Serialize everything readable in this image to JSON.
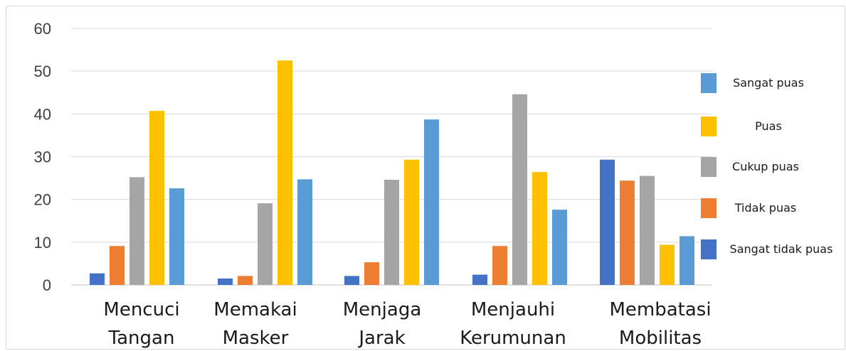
{
  "chart_data": {
    "type": "bar",
    "title": "",
    "xlabel": "",
    "ylabel": "",
    "ylim": [
      0,
      60
    ],
    "yticks": [
      0,
      10,
      20,
      30,
      40,
      50,
      60
    ],
    "grid": true,
    "legend_position": "right",
    "categories": [
      [
        "Mencuci",
        "Tangan"
      ],
      [
        "Memakai",
        "Masker"
      ],
      [
        "Menjaga",
        "Jarak"
      ],
      [
        "Menjauhi",
        "Kerumunan"
      ],
      [
        "Membatasi",
        "Mobilitas"
      ]
    ],
    "series": [
      {
        "name": "Sangat tidak puas",
        "color": "#4472c4",
        "values": [
          2.7,
          1.5,
          2.1,
          2.4,
          29.3
        ]
      },
      {
        "name": "Tidak puas",
        "color": "#ed7d31",
        "values": [
          9.1,
          2.1,
          5.3,
          9.1,
          24.4
        ]
      },
      {
        "name": "Cukup puas",
        "color": "#a5a5a5",
        "values": [
          25.2,
          19.1,
          24.6,
          44.6,
          25.5
        ]
      },
      {
        "name": "Puas",
        "color": "#ffc000",
        "values": [
          40.7,
          52.5,
          29.3,
          26.4,
          9.4
        ]
      },
      {
        "name": "Sangat puas",
        "color": "#5b9bd5",
        "values": [
          22.6,
          24.7,
          38.7,
          17.6,
          11.4
        ]
      }
    ],
    "legend_order": [
      "Sangat puas",
      "Puas",
      "Cukup puas",
      "Tidak puas",
      "Sangat tidak puas"
    ]
  }
}
